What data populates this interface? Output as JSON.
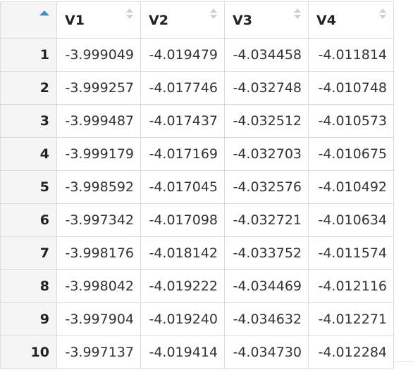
{
  "table": {
    "columns": [
      "V1",
      "V2",
      "V3",
      "V4"
    ],
    "rows": [
      {
        "n": "1",
        "values": [
          "-3.999049",
          "-4.019479",
          "-4.034458",
          "-4.011814"
        ]
      },
      {
        "n": "2",
        "values": [
          "-3.999257",
          "-4.017746",
          "-4.032748",
          "-4.010748"
        ]
      },
      {
        "n": "3",
        "values": [
          "-3.999487",
          "-4.017437",
          "-4.032512",
          "-4.010573"
        ]
      },
      {
        "n": "4",
        "values": [
          "-3.999179",
          "-4.017169",
          "-4.032703",
          "-4.010675"
        ]
      },
      {
        "n": "5",
        "values": [
          "-3.998592",
          "-4.017045",
          "-4.032576",
          "-4.010492"
        ]
      },
      {
        "n": "6",
        "values": [
          "-3.997342",
          "-4.017098",
          "-4.032721",
          "-4.010634"
        ]
      },
      {
        "n": "7",
        "values": [
          "-3.998176",
          "-4.018142",
          "-4.033752",
          "-4.011574"
        ]
      },
      {
        "n": "8",
        "values": [
          "-3.998042",
          "-4.019222",
          "-4.034469",
          "-4.012116"
        ]
      },
      {
        "n": "9",
        "values": [
          "-3.997904",
          "-4.019240",
          "-4.034632",
          "-4.012271"
        ]
      },
      {
        "n": "10",
        "values": [
          "-3.997137",
          "-4.019414",
          "-4.034730",
          "-4.012284"
        ]
      }
    ],
    "sort_active_color": "#2f8fd8"
  }
}
